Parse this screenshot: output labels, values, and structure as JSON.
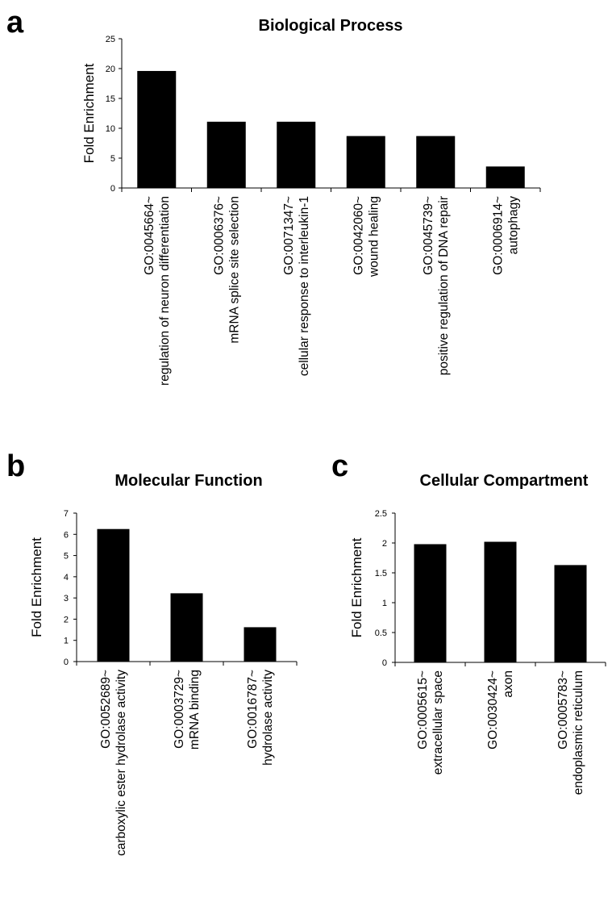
{
  "panels": [
    {
      "letter": "a"
    },
    {
      "letter": "b"
    },
    {
      "letter": "c"
    }
  ],
  "chart_data": [
    {
      "type": "bar",
      "title": "Biological Process",
      "xlabel": "",
      "ylabel": "Fold Enrichment",
      "ylim": [
        0,
        25
      ],
      "yticks": [
        "0",
        "5",
        "10",
        "15",
        "20",
        "25"
      ],
      "grid": false,
      "categories": [
        [
          "GO:0045664~",
          "regulation of neuron differentiation"
        ],
        [
          "GO:0006376~",
          "mRNA splice site selection"
        ],
        [
          "GO:0071347~",
          "cellular response to interleukin-1"
        ],
        [
          "GO:0042060~",
          "wound healing"
        ],
        [
          "GO:0045739~",
          "positive regulation of DNA repair"
        ],
        [
          "GO:0006914~",
          "autophagy"
        ]
      ],
      "values": [
        19.6,
        11.1,
        11.1,
        8.7,
        8.7,
        3.6
      ]
    },
    {
      "type": "bar",
      "title": "Molecular Function",
      "xlabel": "",
      "ylabel": "Fold Enrichment",
      "ylim": [
        0,
        7
      ],
      "yticks": [
        "0",
        "1",
        "2",
        "3",
        "4",
        "5",
        "6",
        "7"
      ],
      "grid": false,
      "categories": [
        [
          "GO:0052689~",
          "carboxylic ester hydrolase activity"
        ],
        [
          "GO:0003729~",
          "mRNA binding"
        ],
        [
          "GO:0016787~",
          "hydrolase activity"
        ]
      ],
      "values": [
        6.25,
        3.22,
        1.62
      ]
    },
    {
      "type": "bar",
      "title": "Cellular Compartment",
      "xlabel": "",
      "ylabel": "Fold Enrichment",
      "ylim": [
        0,
        2.5
      ],
      "yticks": [
        "0",
        "0.5",
        "1",
        "1.5",
        "2",
        "2.5"
      ],
      "grid": false,
      "categories": [
        [
          "GO:0005615~",
          "extracellular space"
        ],
        [
          "GO:0030424~",
          "axon"
        ],
        [
          "GO:0005783~",
          "endoplasmic reticulum"
        ]
      ],
      "values": [
        1.98,
        2.02,
        1.63
      ]
    }
  ]
}
